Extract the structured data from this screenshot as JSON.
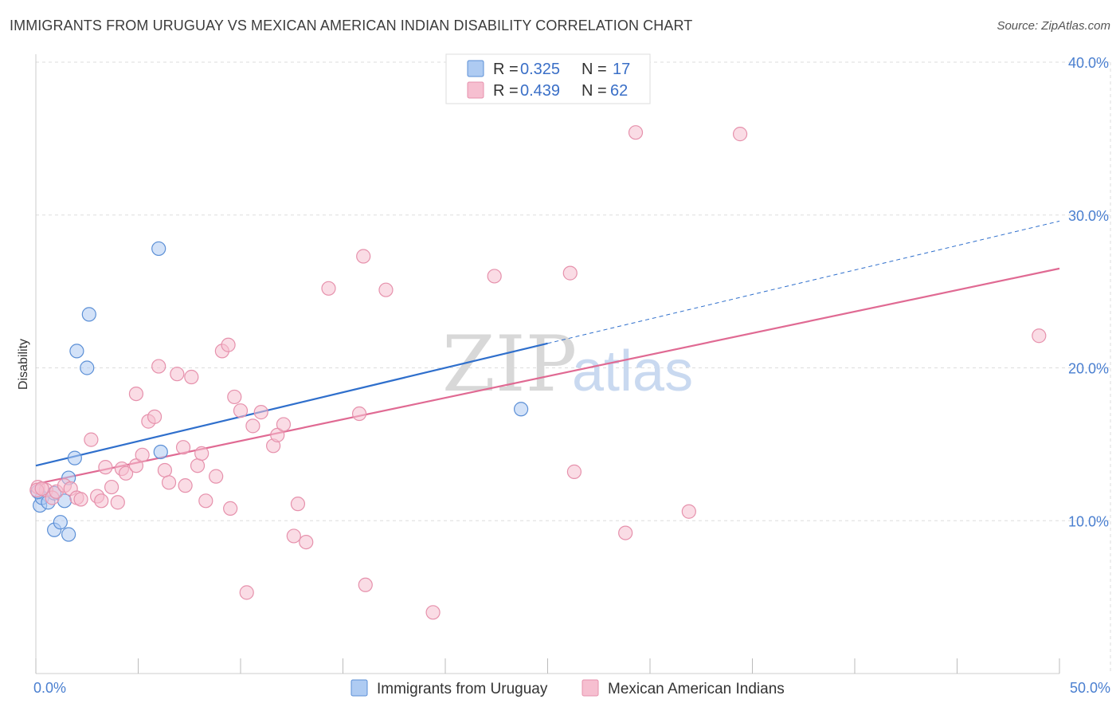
{
  "title": "IMMIGRANTS FROM URUGUAY VS MEXICAN AMERICAN INDIAN DISABILITY CORRELATION CHART",
  "source": "Source: ZipAtlas.com",
  "watermark": {
    "zip": "ZIP",
    "atlas": "atlas"
  },
  "colors": {
    "blue_fill": "#aecbf2",
    "blue_stroke": "#5b8fd6",
    "blue_line": "#2f6fcc",
    "pink_fill": "#f6bfd0",
    "pink_stroke": "#e691ac",
    "pink_line": "#e06a93",
    "grid": "#dddddd",
    "tick_text": "#4a7fd0"
  },
  "legend": {
    "entries": [
      {
        "r_label": "R =",
        "r_value": "0.325",
        "n_label": "N =",
        "n_value": "17"
      },
      {
        "r_label": "R =",
        "r_value": "0.439",
        "n_label": "N =",
        "n_value": "62"
      }
    ]
  },
  "chart_data": {
    "type": "scatter",
    "xlabel": "",
    "ylabel": "Disability",
    "xlim": [
      0,
      50
    ],
    "ylim": [
      0,
      40
    ],
    "x_tick_labels": [
      "0.0%",
      "50.0%"
    ],
    "y_ticks": [
      10,
      20,
      30,
      40
    ],
    "y_tick_labels": [
      "10.0%",
      "20.0%",
      "30.0%",
      "40.0%"
    ],
    "grid": true,
    "legend_position": "top-center",
    "series": [
      {
        "name": "Immigrants from Uruguay",
        "color": "blue",
        "points": [
          [
            0.2,
            11.0
          ],
          [
            0.3,
            11.5
          ],
          [
            0.6,
            11.2
          ],
          [
            0.9,
            11.8
          ],
          [
            0.9,
            9.4
          ],
          [
            1.2,
            9.9
          ],
          [
            1.4,
            11.3
          ],
          [
            1.6,
            9.1
          ],
          [
            1.6,
            12.8
          ],
          [
            1.9,
            14.1
          ],
          [
            2.0,
            21.1
          ],
          [
            2.5,
            20.0
          ],
          [
            2.6,
            23.5
          ],
          [
            6.0,
            27.8
          ],
          [
            6.1,
            14.5
          ],
          [
            23.7,
            17.3
          ],
          [
            0.1,
            11.9
          ]
        ],
        "trend": {
          "x0": 0,
          "y0": 13.6,
          "x1": 25,
          "y1": 21.6,
          "dash_to": 50,
          "dash_y": 29.6
        }
      },
      {
        "name": "Mexican American Indians",
        "color": "pink",
        "points": [
          [
            0.1,
            12.2
          ],
          [
            0.5,
            12.0
          ],
          [
            0.8,
            11.5
          ],
          [
            1.0,
            11.9
          ],
          [
            1.4,
            12.3
          ],
          [
            1.7,
            12.1
          ],
          [
            2.0,
            11.5
          ],
          [
            2.2,
            11.4
          ],
          [
            2.7,
            15.3
          ],
          [
            3.0,
            11.6
          ],
          [
            3.2,
            11.3
          ],
          [
            3.4,
            13.5
          ],
          [
            3.7,
            12.2
          ],
          [
            4.0,
            11.2
          ],
          [
            4.2,
            13.4
          ],
          [
            4.4,
            13.1
          ],
          [
            4.9,
            13.6
          ],
          [
            5.2,
            14.3
          ],
          [
            5.5,
            16.5
          ],
          [
            5.8,
            16.8
          ],
          [
            4.9,
            18.3
          ],
          [
            6.0,
            20.1
          ],
          [
            6.3,
            13.3
          ],
          [
            6.5,
            12.5
          ],
          [
            6.9,
            19.6
          ],
          [
            7.2,
            14.8
          ],
          [
            7.3,
            12.3
          ],
          [
            7.6,
            19.4
          ],
          [
            7.9,
            13.6
          ],
          [
            8.1,
            14.4
          ],
          [
            8.3,
            11.3
          ],
          [
            8.8,
            12.9
          ],
          [
            9.1,
            21.1
          ],
          [
            9.4,
            21.5
          ],
          [
            9.5,
            10.8
          ],
          [
            9.7,
            18.1
          ],
          [
            10.0,
            17.2
          ],
          [
            10.3,
            5.3
          ],
          [
            10.6,
            16.2
          ],
          [
            11.0,
            17.1
          ],
          [
            11.6,
            14.9
          ],
          [
            11.8,
            15.6
          ],
          [
            12.1,
            16.3
          ],
          [
            12.6,
            9.0
          ],
          [
            12.8,
            11.1
          ],
          [
            13.2,
            8.6
          ],
          [
            14.3,
            25.2
          ],
          [
            15.8,
            17.0
          ],
          [
            16.0,
            27.3
          ],
          [
            16.1,
            5.8
          ],
          [
            17.1,
            25.1
          ],
          [
            19.4,
            4.0
          ],
          [
            22.4,
            26.0
          ],
          [
            26.1,
            26.2
          ],
          [
            26.3,
            13.2
          ],
          [
            28.8,
            9.2
          ],
          [
            29.3,
            35.4
          ],
          [
            31.9,
            10.6
          ],
          [
            34.4,
            35.3
          ],
          [
            49.0,
            22.1
          ],
          [
            0.05,
            12.0
          ],
          [
            0.3,
            12.1
          ]
        ],
        "trend": {
          "x0": 0,
          "y0": 12.4,
          "x1": 50,
          "y1": 26.5
        }
      }
    ]
  }
}
